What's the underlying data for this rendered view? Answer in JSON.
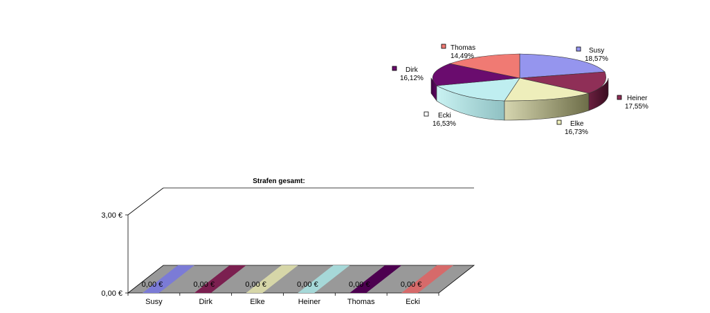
{
  "chart_data": [
    {
      "type": "pie",
      "title": "",
      "slices": [
        {
          "name": "Susy",
          "label": "18,57%",
          "value": 18.57,
          "color": "#9595ee"
        },
        {
          "name": "Heiner",
          "label": "17,55%",
          "value": 17.55,
          "color": "#8f2f57"
        },
        {
          "name": "Elke",
          "label": "16,73%",
          "value": 16.73,
          "color": "#eeeebb"
        },
        {
          "name": "Ecki",
          "label": "16,53%",
          "value": 16.53,
          "color": "#bfeef0"
        },
        {
          "name": "Dirk",
          "label": "16,12%",
          "value": 16.12,
          "color": "#6a0c6e"
        },
        {
          "name": "Thomas",
          "label": "14,49%",
          "value": 14.49,
          "color": "#f07a73"
        }
      ]
    },
    {
      "type": "bar",
      "title": "Strafen gesamt:",
      "categories": [
        "Susy",
        "Dirk",
        "Elke",
        "Heiner",
        "Thomas",
        "Ecki"
      ],
      "values": [
        0,
        0,
        0,
        0,
        0,
        0
      ],
      "value_labels": [
        "0,00 €",
        "0,00 €",
        "0,00 €",
        "0,00 €",
        "0,00 €",
        "0,00 €"
      ],
      "colors": [
        "#7b7bd6",
        "#7b2050",
        "#d6d6a8",
        "#a6d8d8",
        "#4d0050",
        "#d66a6a"
      ],
      "y_ticks": [
        {
          "value": 0,
          "label": "0,00 €"
        },
        {
          "value": 3,
          "label": "3,00 €"
        }
      ],
      "ylim": [
        0,
        3
      ],
      "xlabel": "",
      "ylabel": "",
      "grid": false
    }
  ]
}
